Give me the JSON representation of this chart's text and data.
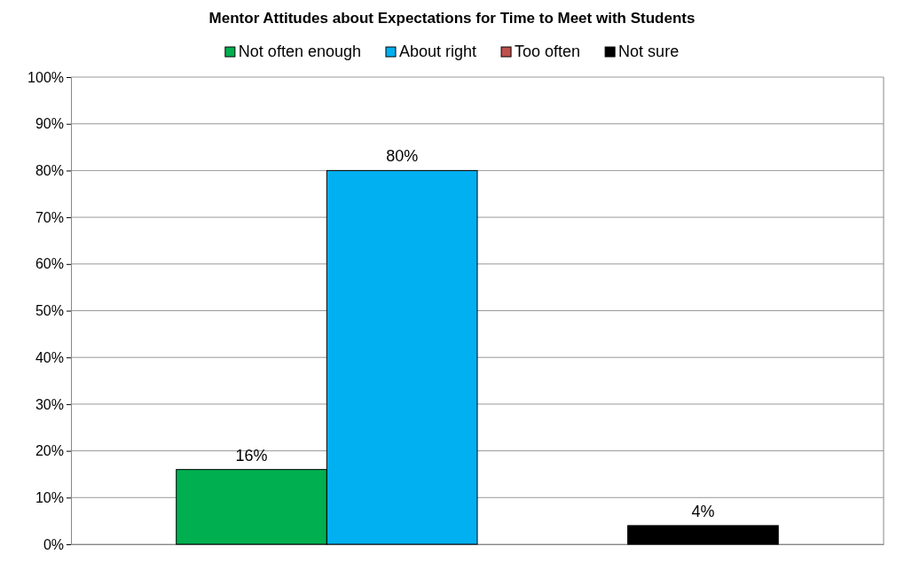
{
  "chart_data": {
    "type": "bar",
    "title": "Mentor Attitudes about Expectations for Time to Meet with Students",
    "categories": [
      null
    ],
    "series": [
      {
        "name": "Not often enough",
        "color": "#00b050",
        "values": [
          16
        ],
        "value_labels": [
          "16%"
        ]
      },
      {
        "name": "About right",
        "color": "#00b0f0",
        "values": [
          80
        ],
        "value_labels": [
          "80%"
        ]
      },
      {
        "name": "Too often",
        "color": "#c0504d",
        "values": [
          0
        ],
        "value_labels": [
          null
        ]
      },
      {
        "name": "Not sure",
        "color": "#000000",
        "values": [
          4
        ],
        "value_labels": [
          "4%"
        ]
      }
    ],
    "ylim": [
      0,
      100
    ],
    "yticks": [
      {
        "value": 0,
        "label": "0%"
      },
      {
        "value": 10,
        "label": "10%"
      },
      {
        "value": 20,
        "label": "20%"
      },
      {
        "value": 30,
        "label": "30%"
      },
      {
        "value": 40,
        "label": "40%"
      },
      {
        "value": 50,
        "label": "50%"
      },
      {
        "value": 60,
        "label": "60%"
      },
      {
        "value": 70,
        "label": "70%"
      },
      {
        "value": 80,
        "label": "80%"
      },
      {
        "value": 90,
        "label": "90%"
      },
      {
        "value": 100,
        "label": "100%"
      }
    ],
    "grid": "y",
    "legend": "top"
  }
}
